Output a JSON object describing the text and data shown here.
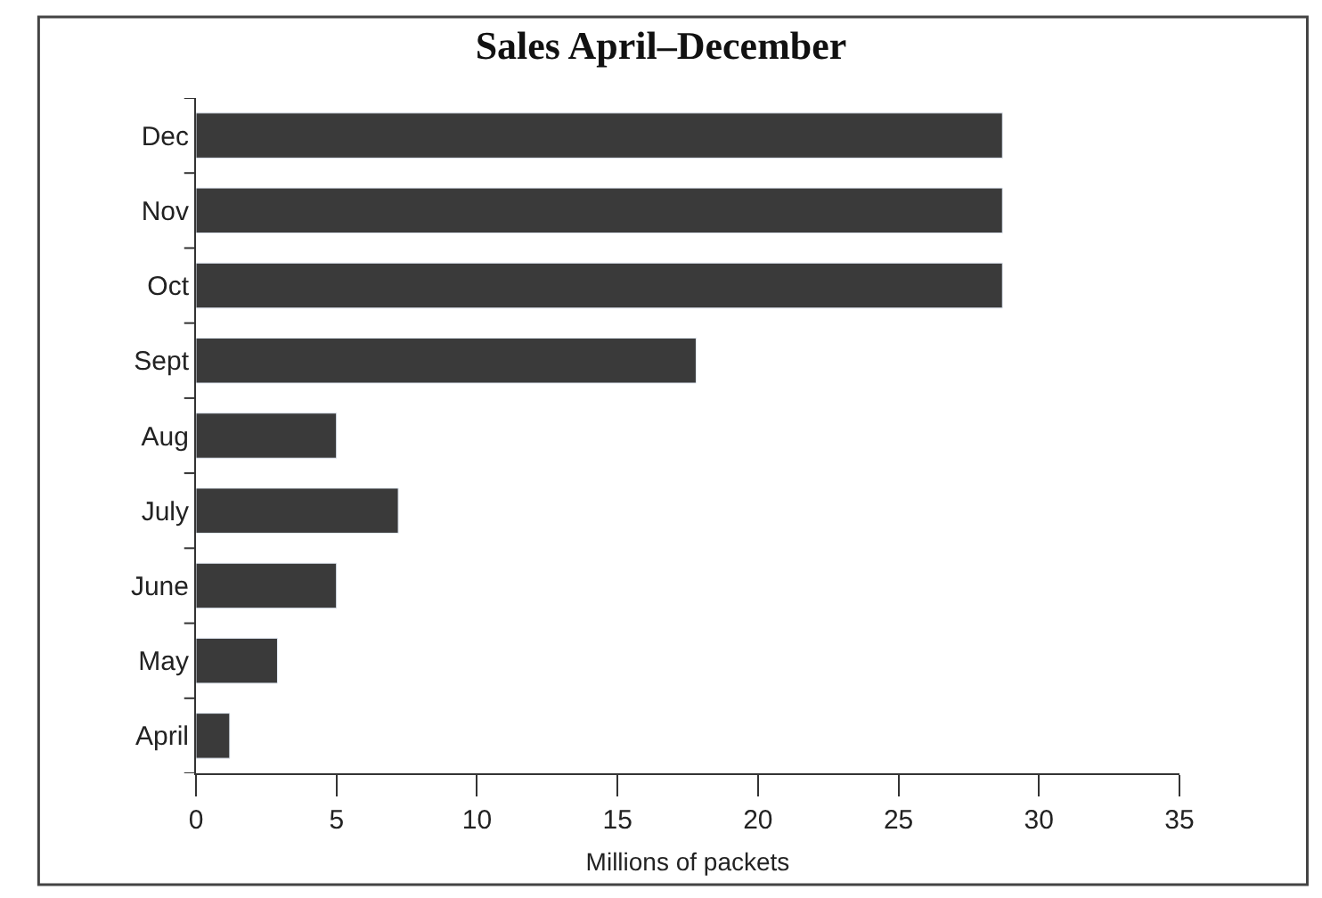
{
  "chart_data": {
    "type": "bar",
    "orientation": "horizontal",
    "title": "Sales April–December",
    "xlabel": "Millions of packets",
    "categories": [
      "Dec",
      "Nov",
      "Oct",
      "Sept",
      "Aug",
      "July",
      "June",
      "May",
      "April"
    ],
    "values": [
      28.7,
      28.7,
      28.7,
      17.8,
      5.0,
      7.2,
      5.0,
      2.9,
      1.2
    ],
    "color": "#3a3a3a",
    "xlim": [
      0,
      35
    ],
    "xticks": [
      0,
      5,
      10,
      15,
      20,
      25,
      30,
      35
    ]
  }
}
